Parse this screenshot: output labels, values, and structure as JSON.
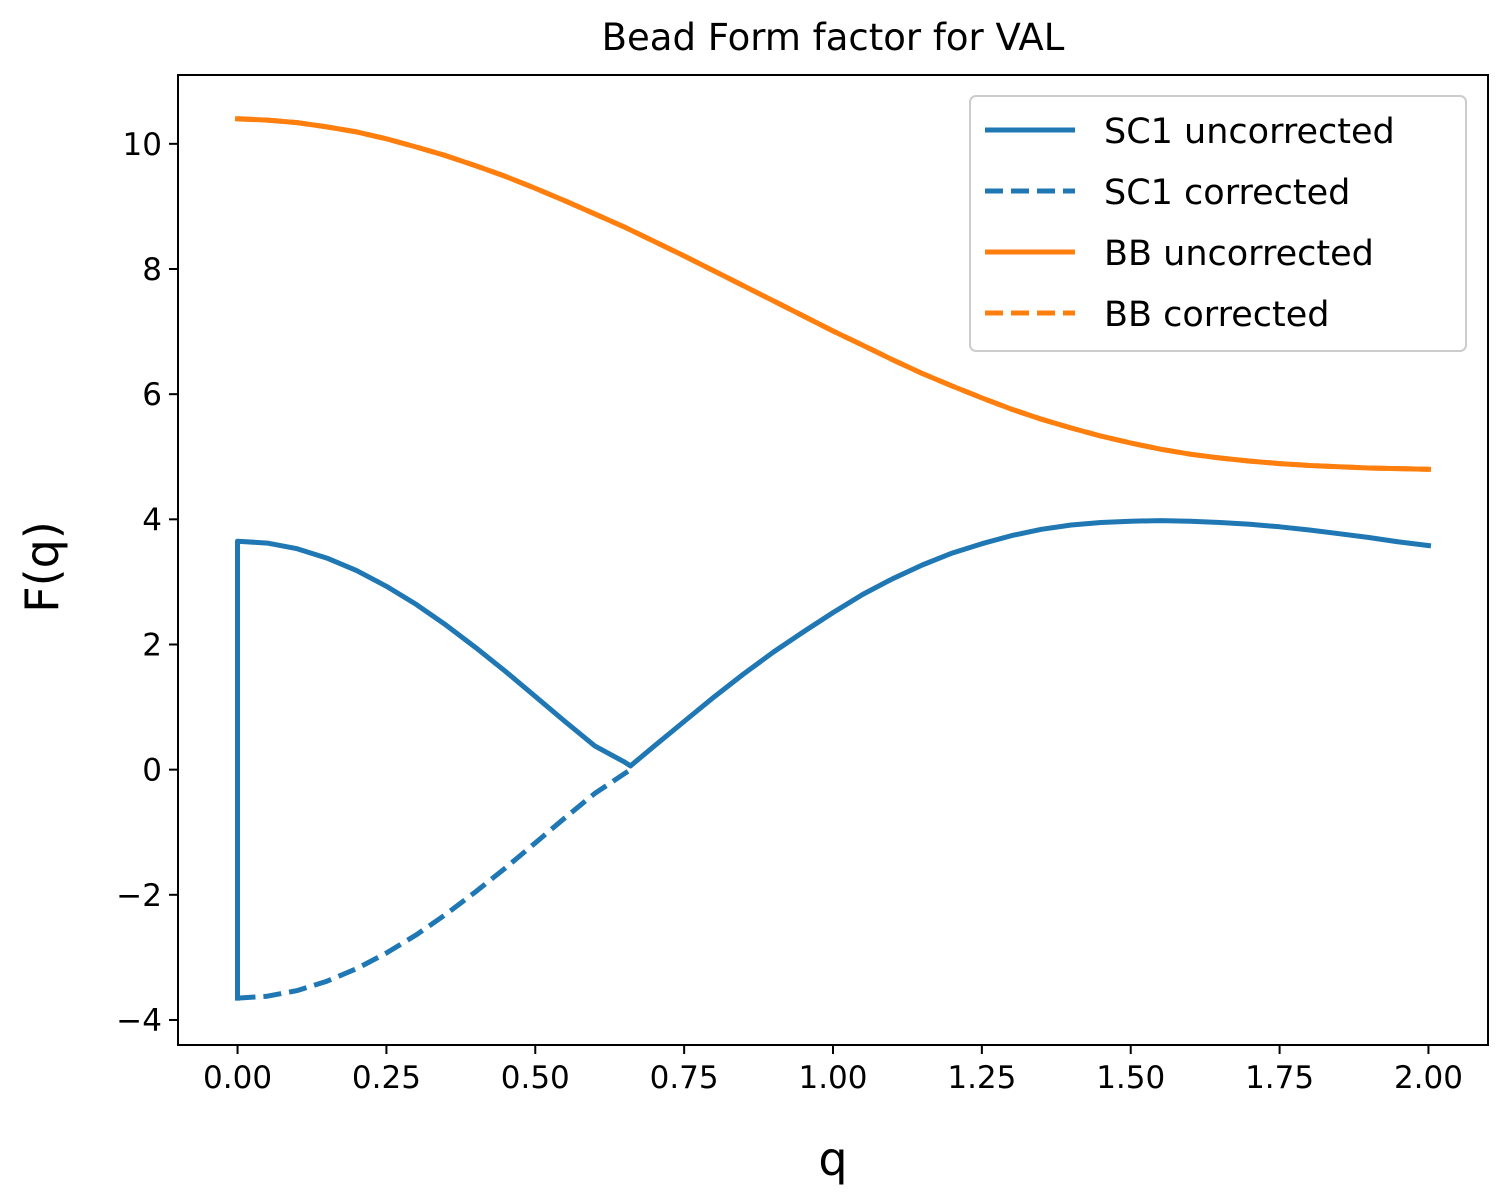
{
  "chart_data": {
    "type": "line",
    "title": "Bead Form factor for VAL",
    "xlabel": "q",
    "ylabel": "F(q)",
    "xlim": [
      -0.1,
      2.1
    ],
    "ylim": [
      -4.4,
      11.1
    ],
    "xticks": [
      0.0,
      0.25,
      0.5,
      0.75,
      1.0,
      1.25,
      1.5,
      1.75,
      2.0
    ],
    "xtick_labels": [
      "0.00",
      "0.25",
      "0.50",
      "0.75",
      "1.00",
      "1.25",
      "1.50",
      "1.75",
      "2.00"
    ],
    "yticks": [
      -4,
      -2,
      0,
      2,
      4,
      6,
      8,
      10
    ],
    "ytick_labels": [
      "−4",
      "−2",
      "0",
      "2",
      "4",
      "6",
      "8",
      "10"
    ],
    "grid": false,
    "legend_position": "top-right",
    "series": [
      {
        "name": "SC1 uncorrected",
        "color": "#1f77b4",
        "style": "solid",
        "x": [
          0.0,
          0.0,
          0.05,
          0.1,
          0.15,
          0.2,
          0.25,
          0.3,
          0.35,
          0.4,
          0.45,
          0.5,
          0.55,
          0.6,
          0.65,
          0.66,
          0.7,
          0.75,
          0.8,
          0.85,
          0.9,
          0.95,
          1.0,
          1.05,
          1.1,
          1.15,
          1.2,
          1.25,
          1.3,
          1.35,
          1.4,
          1.45,
          1.5,
          1.55,
          1.6,
          1.65,
          1.7,
          1.75,
          1.8,
          1.85,
          1.9,
          1.95,
          2.0
        ],
        "y": [
          -3.65,
          3.65,
          3.62,
          3.53,
          3.38,
          3.18,
          2.93,
          2.64,
          2.31,
          1.95,
          1.57,
          1.17,
          0.77,
          0.38,
          0.12,
          0.06,
          0.38,
          0.77,
          1.16,
          1.53,
          1.88,
          2.2,
          2.51,
          2.8,
          3.05,
          3.27,
          3.46,
          3.61,
          3.74,
          3.84,
          3.91,
          3.95,
          3.97,
          3.98,
          3.97,
          3.95,
          3.92,
          3.88,
          3.83,
          3.77,
          3.71,
          3.64,
          3.58
        ]
      },
      {
        "name": "SC1 corrected",
        "color": "#1f77b4",
        "style": "dashed",
        "x": [
          0.0,
          0.05,
          0.1,
          0.15,
          0.2,
          0.25,
          0.3,
          0.35,
          0.4,
          0.45,
          0.5,
          0.55,
          0.6,
          0.66
        ],
        "y": [
          -3.65,
          -3.62,
          -3.53,
          -3.38,
          -3.18,
          -2.93,
          -2.64,
          -2.31,
          -1.95,
          -1.57,
          -1.17,
          -0.77,
          -0.38,
          0.0
        ]
      },
      {
        "name": "BB uncorrected",
        "color": "#ff7f0e",
        "style": "solid",
        "x": [
          0.0,
          0.05,
          0.1,
          0.15,
          0.2,
          0.25,
          0.3,
          0.35,
          0.4,
          0.45,
          0.5,
          0.55,
          0.6,
          0.65,
          0.7,
          0.75,
          0.8,
          0.85,
          0.9,
          0.95,
          1.0,
          1.05,
          1.1,
          1.15,
          1.2,
          1.25,
          1.3,
          1.35,
          1.4,
          1.45,
          1.5,
          1.55,
          1.6,
          1.65,
          1.7,
          1.75,
          1.8,
          1.85,
          1.9,
          1.95,
          2.0
        ],
        "y": [
          10.4,
          10.38,
          10.34,
          10.27,
          10.19,
          10.08,
          9.95,
          9.81,
          9.65,
          9.48,
          9.29,
          9.09,
          8.88,
          8.67,
          8.44,
          8.21,
          7.97,
          7.73,
          7.49,
          7.25,
          7.01,
          6.78,
          6.55,
          6.33,
          6.13,
          5.94,
          5.76,
          5.6,
          5.46,
          5.33,
          5.22,
          5.12,
          5.04,
          4.98,
          4.93,
          4.89,
          4.86,
          4.84,
          4.82,
          4.81,
          4.8
        ]
      },
      {
        "name": "BB corrected",
        "color": "#ff7f0e",
        "style": "dashed",
        "x": [
          0.0,
          0.05,
          0.1,
          0.15,
          0.2,
          0.25,
          0.3,
          0.35,
          0.4,
          0.45,
          0.5,
          0.55,
          0.6,
          0.65,
          0.7,
          0.75,
          0.8,
          0.85,
          0.9,
          0.95,
          1.0,
          1.05,
          1.1,
          1.15,
          1.2,
          1.25,
          1.3,
          1.35,
          1.4,
          1.45,
          1.5,
          1.55,
          1.6,
          1.65,
          1.7,
          1.75,
          1.8,
          1.85,
          1.9,
          1.95,
          2.0
        ],
        "y": [
          10.4,
          10.38,
          10.34,
          10.27,
          10.19,
          10.08,
          9.95,
          9.81,
          9.65,
          9.48,
          9.29,
          9.09,
          8.88,
          8.67,
          8.44,
          8.21,
          7.97,
          7.73,
          7.49,
          7.25,
          7.01,
          6.78,
          6.55,
          6.33,
          6.13,
          5.94,
          5.76,
          5.6,
          5.46,
          5.33,
          5.22,
          5.12,
          5.04,
          4.98,
          4.93,
          4.89,
          4.86,
          4.84,
          4.82,
          4.81,
          4.8
        ]
      }
    ]
  }
}
